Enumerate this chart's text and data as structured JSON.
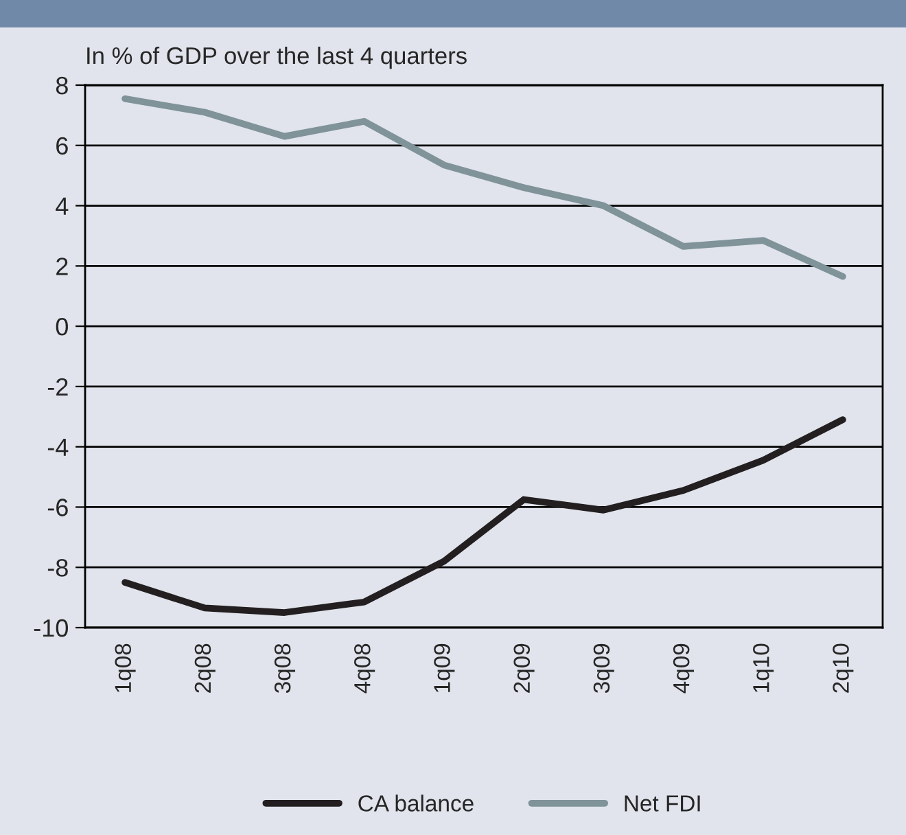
{
  "chart_data": {
    "type": "line",
    "ylabel": "In % of GDP over the last 4 quarters",
    "categories": [
      "1q08",
      "2q08",
      "3q08",
      "4q08",
      "1q09",
      "2q09",
      "3q09",
      "4q09",
      "1q10",
      "2q10"
    ],
    "series": [
      {
        "name": "CA balance",
        "color": "#231f20",
        "values": [
          -8.5,
          -9.35,
          -9.5,
          -9.15,
          -7.8,
          -5.75,
          -6.1,
          -5.45,
          -4.45,
          -3.1
        ]
      },
      {
        "name": "Net FDI",
        "color": "#7f9399",
        "values": [
          7.55,
          7.1,
          6.3,
          6.8,
          5.35,
          4.6,
          4.0,
          2.65,
          2.85,
          1.65
        ]
      }
    ],
    "ylim": [
      -10,
      8
    ],
    "yticks": [
      -10,
      -8,
      -6,
      -4,
      -2,
      0,
      2,
      4,
      6,
      8
    ],
    "grid": "y",
    "legend": "bottom",
    "marker": "none",
    "line_style": "solid"
  }
}
